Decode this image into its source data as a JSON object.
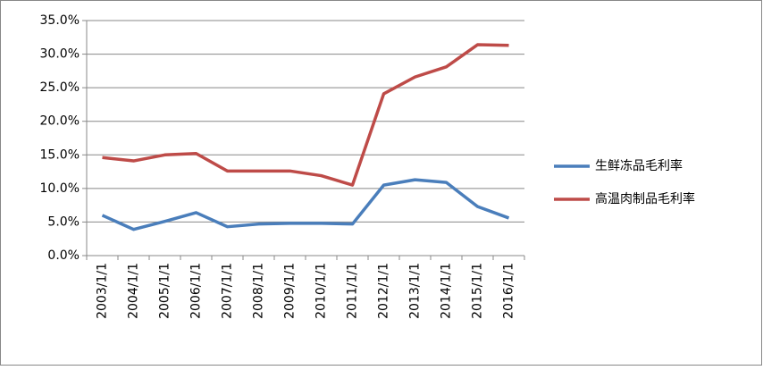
{
  "chart_data": {
    "type": "line",
    "categories": [
      "2003/1/1",
      "2004/1/1",
      "2005/1/1",
      "2006/1/1",
      "2007/1/1",
      "2008/1/1",
      "2009/1/1",
      "2010/1/1",
      "2011/1/1",
      "2012/1/1",
      "2013/1/1",
      "2014/1/1",
      "2015/1/1",
      "2016/1/1"
    ],
    "series": [
      {
        "name": "生鲜冻品毛利率",
        "color": "#4a7ebb",
        "values": [
          6.0,
          3.9,
          5.1,
          6.4,
          4.3,
          4.7,
          4.8,
          4.8,
          4.7,
          10.5,
          11.3,
          10.9,
          7.3,
          5.6
        ]
      },
      {
        "name": "高温肉制品毛利率",
        "color": "#be4b48",
        "values": [
          14.6,
          14.1,
          15.0,
          15.2,
          12.6,
          12.6,
          12.6,
          11.9,
          10.5,
          24.1,
          26.6,
          28.1,
          31.4,
          31.3
        ]
      }
    ],
    "ylim": [
      0,
      35
    ],
    "yticks": [
      {
        "value": 0,
        "label": "0.0%"
      },
      {
        "value": 5,
        "label": "5.0%"
      },
      {
        "value": 10,
        "label": "10.0%"
      },
      {
        "value": 15,
        "label": "15.0%"
      },
      {
        "value": 20,
        "label": "20.0%"
      },
      {
        "value": 25,
        "label": "25.0%"
      },
      {
        "value": 30,
        "label": "30.0%"
      },
      {
        "value": 35,
        "label": "35.0%"
      }
    ],
    "grid": true,
    "legend": "right"
  }
}
